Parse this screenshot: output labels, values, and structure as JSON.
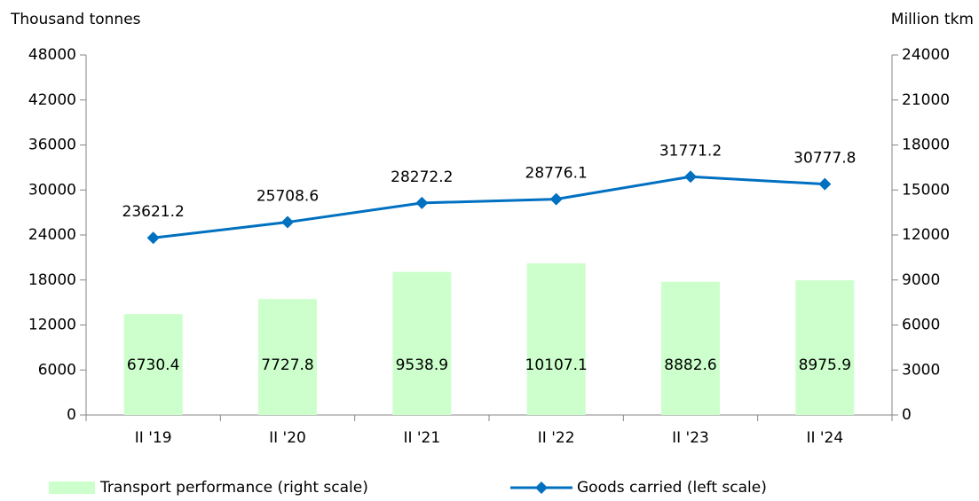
{
  "chart_data": {
    "type": "combo",
    "y_label": "Thousand tonnes",
    "y2_label": "Million tkm",
    "categories": [
      "II '19",
      "II '20",
      "II '21",
      "II '22",
      "II '23",
      "II '24"
    ],
    "series": [
      {
        "name": "Transport performance (right scale)",
        "type": "bar",
        "axis": "y2",
        "color": "#ccffcc",
        "values": [
          6730.4,
          7727.8,
          9538.9,
          10107.1,
          8882.6,
          8975.9
        ]
      },
      {
        "name": "Goods carried (left scale)",
        "type": "line",
        "axis": "y",
        "color": "#0070c0",
        "values": [
          23621.2,
          25708.6,
          28272.2,
          28776.1,
          31771.2,
          30777.8
        ]
      }
    ],
    "ylim": [
      0,
      48000
    ],
    "yticks": [
      0,
      6000,
      12000,
      18000,
      24000,
      30000,
      36000,
      42000,
      48000
    ],
    "y2lim": [
      0,
      24000
    ],
    "y2ticks": [
      0,
      3000,
      6000,
      9000,
      12000,
      15000,
      18000,
      21000,
      24000
    ],
    "grid": false,
    "legend": "bottom"
  }
}
